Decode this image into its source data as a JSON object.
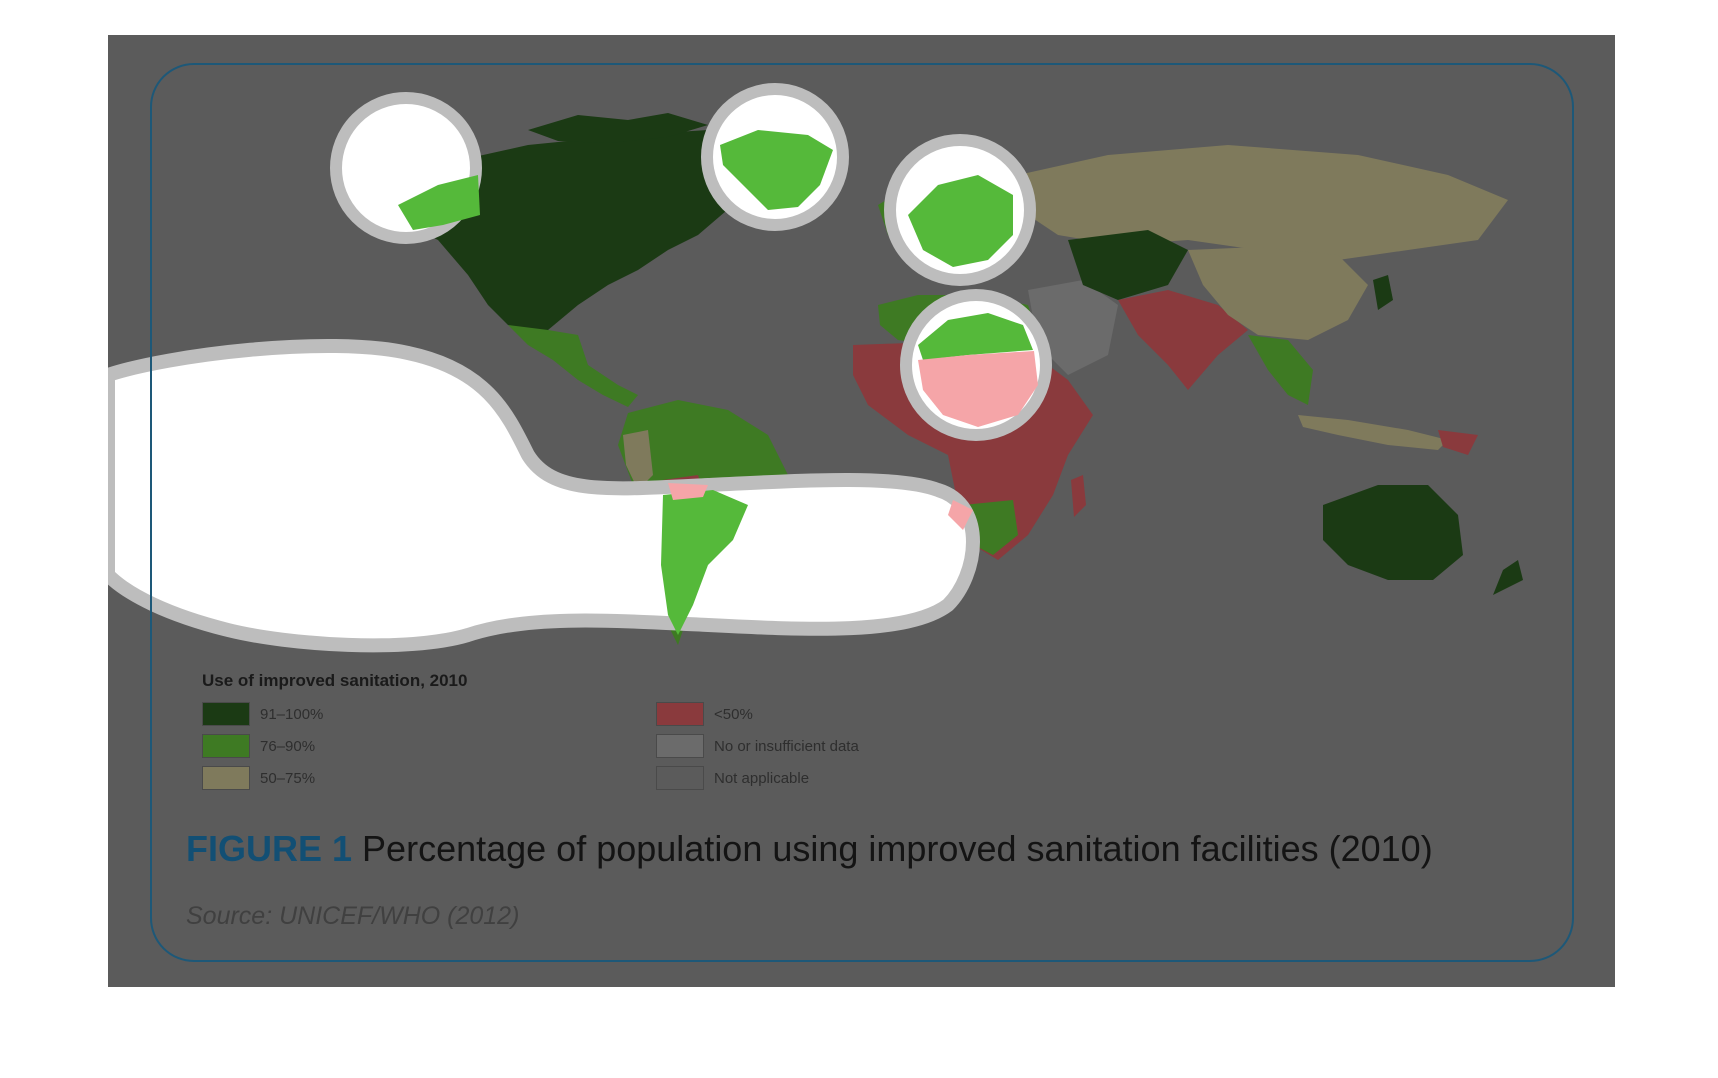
{
  "legend": {
    "title": "Use of improved sanitation, 2010",
    "items": [
      {
        "label": "91–100%",
        "color": "#1b3a14"
      },
      {
        "label": "76–90%",
        "color": "#3e7a23"
      },
      {
        "label": "50–75%",
        "color": "#7f7a5c"
      },
      {
        "label": "<50%",
        "color": "#8a3a3d"
      },
      {
        "label": "No or insufficient data",
        "color": "#6b6b6b"
      },
      {
        "label": "Not applicable",
        "color": "#5b5b5b"
      }
    ]
  },
  "caption": {
    "figure_label": "FIGURE 1",
    "text": "Percentage of population using improved sanitation facilities (2010)"
  },
  "source": "Source: UNICEF/WHO (2012)",
  "colors": {
    "overlay_background": "#5b5b5b",
    "frame_border": "#1d5878",
    "figure_label": "#124f74",
    "highlight_green": "#55b93a",
    "highlight_red": "#f5a5a8"
  }
}
